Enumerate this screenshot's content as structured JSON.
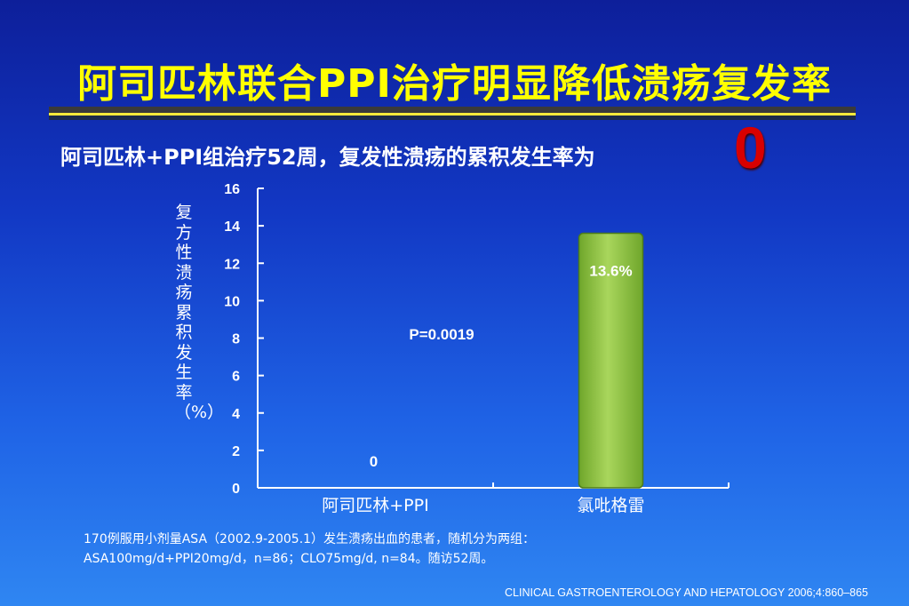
{
  "slide": {
    "title": "阿司匹林联合PPI治疗明显降低溃疡复发率",
    "subtitle": "阿司匹林+PPI组治疗52周，复发性溃疡的累积发生率为",
    "highlight": "0",
    "footnote_line1": "170例服用小剂量ASA（2002.9-2005.1）发生溃疡出血的患者，随机分为两组：",
    "footnote_line2": "ASA100mg/d+PPI20mg/d，n=86；CLO75mg/d, n=84。随访52周。",
    "citation": "CLINICAL GASTROENTEROLOGY AND HEPATOLOGY 2006;4:860–865"
  },
  "chart_data": {
    "type": "bar",
    "categories": [
      "阿司匹林+PPI",
      "氯吡格雷"
    ],
    "values": [
      0,
      13.6
    ],
    "data_labels": [
      "0",
      "13.6%"
    ],
    "title": "",
    "xlabel": "",
    "ylabel": "复方性溃疡累积发生率（%）",
    "ylim": [
      0,
      16
    ],
    "yticks": [
      0,
      2,
      4,
      6,
      8,
      10,
      12,
      14,
      16
    ],
    "annotation": "P=0.0019",
    "grid": false,
    "legend": "none",
    "bar_color": "#8dc63f",
    "bar_edge_color": "#4a7a1a",
    "axis_color": "#ffffff",
    "text_color": "#ffffff"
  }
}
